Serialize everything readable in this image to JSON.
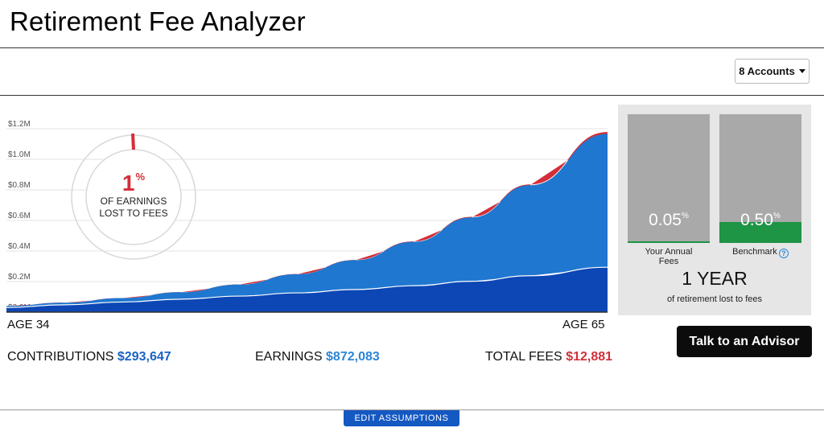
{
  "header": {
    "title": "Retirement Fee Analyzer"
  },
  "accounts": {
    "selected": "8 Accounts",
    "icon": "chevron-down-icon"
  },
  "summary": {
    "lost_pct": "1",
    "lost_pct_unit": "%",
    "lost_caption_line1": "OF EARNINGS",
    "lost_caption_line2": "LOST TO FEES"
  },
  "chart_data": {
    "type": "area",
    "ylim": [
      0,
      1200000
    ],
    "y_ticks": [
      "$0.0M",
      "$0.2M",
      "$0.4M",
      "$0.6M",
      "$0.8M",
      "$1.0M",
      "$1.2M"
    ],
    "x": [
      34,
      37,
      40,
      43,
      46,
      49,
      52,
      55,
      58,
      61,
      65
    ],
    "x_start_label": "AGE 34",
    "x_end_label": "AGE 65",
    "series": [
      {
        "color": "#0d47b5",
        "values": [
          30000,
          48000,
          66000,
          85000,
          105000,
          126000,
          148000,
          173000,
          202000,
          238000,
          293647
        ]
      },
      {
        "color": "#1f77d0",
        "values": [
          40000,
          62000,
          92000,
          130000,
          180000,
          248000,
          340000,
          460000,
          620000,
          830000,
          1165730
        ]
      },
      {
        "color": "#d32f3a",
        "values": [
          40100,
          62200,
          92400,
          130600,
          180900,
          249200,
          341700,
          462500,
          623700,
          835200,
          1178611
        ]
      }
    ],
    "grid": true
  },
  "stats": {
    "contributions_label": "CONTRIBUTIONS",
    "contributions_value": "$293,647",
    "earnings_label": "EARNINGS",
    "earnings_value": "$872,083",
    "fees_label": "TOTAL FEES",
    "fees_value": "$12,881"
  },
  "comparison": {
    "your_value": "0.05",
    "your_unit": "%",
    "your_label_line1": "Your Annual",
    "your_label_line2": "Fees",
    "your_fill_fraction": 0.01,
    "bench_value": "0.50",
    "bench_unit": "%",
    "bench_label": "Benchmark",
    "bench_fill_fraction": 0.16,
    "fill_color": "#1e9445",
    "years": "1 YEAR",
    "years_caption": "of retirement lost to fees"
  },
  "actions": {
    "advisor": "Talk to an Advisor",
    "edit": "EDIT ASSUMPTIONS"
  }
}
